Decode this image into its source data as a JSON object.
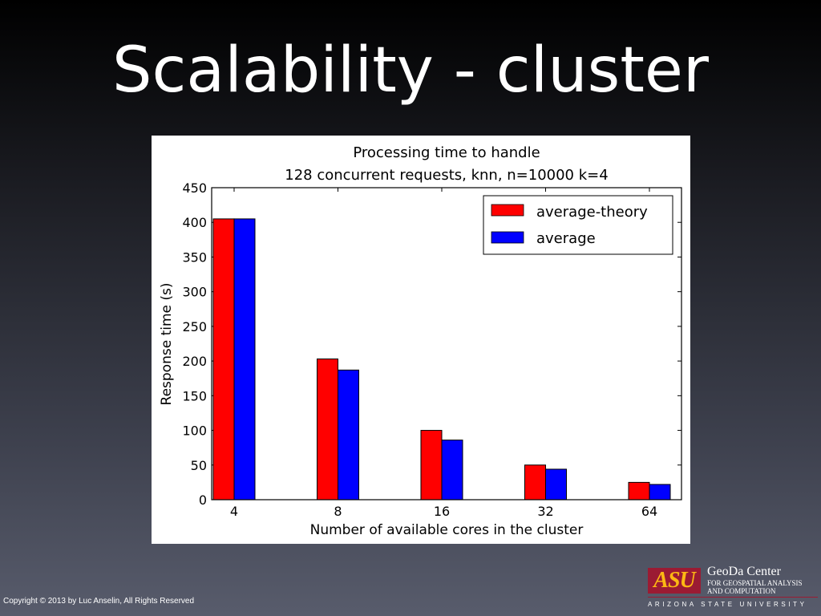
{
  "slide": {
    "title": "Scalability - cluster",
    "copyright": "Copyright © 2013 by Luc Anselin, All Rights Reserved"
  },
  "logo": {
    "asu_mark": "ASU",
    "center_name": "GeoDa Center",
    "center_sub1": "FOR GEOSPATIAL ANALYSIS",
    "center_sub2": "AND COMPUTATION",
    "university": "ARIZONA STATE UNIVERSITY"
  },
  "chart_data": {
    "type": "bar",
    "title": [
      "Processing time to handle",
      "128 concurrent requests, knn, n=10000 k=4"
    ],
    "xlabel": "Number of available cores in the cluster",
    "ylabel": "Response time (s)",
    "categories": [
      "4",
      "8",
      "16",
      "32",
      "64"
    ],
    "ylim": [
      0,
      450
    ],
    "yticks": [
      0,
      50,
      100,
      150,
      200,
      250,
      300,
      350,
      400,
      450
    ],
    "series": [
      {
        "name": "average-theory",
        "color": "#ff0000",
        "values": [
          405,
          203,
          100,
          50,
          25
        ]
      },
      {
        "name": "average",
        "color": "#0000ff",
        "values": [
          405,
          187,
          86,
          44,
          22
        ]
      }
    ],
    "legend": "top-right",
    "grid": false
  }
}
